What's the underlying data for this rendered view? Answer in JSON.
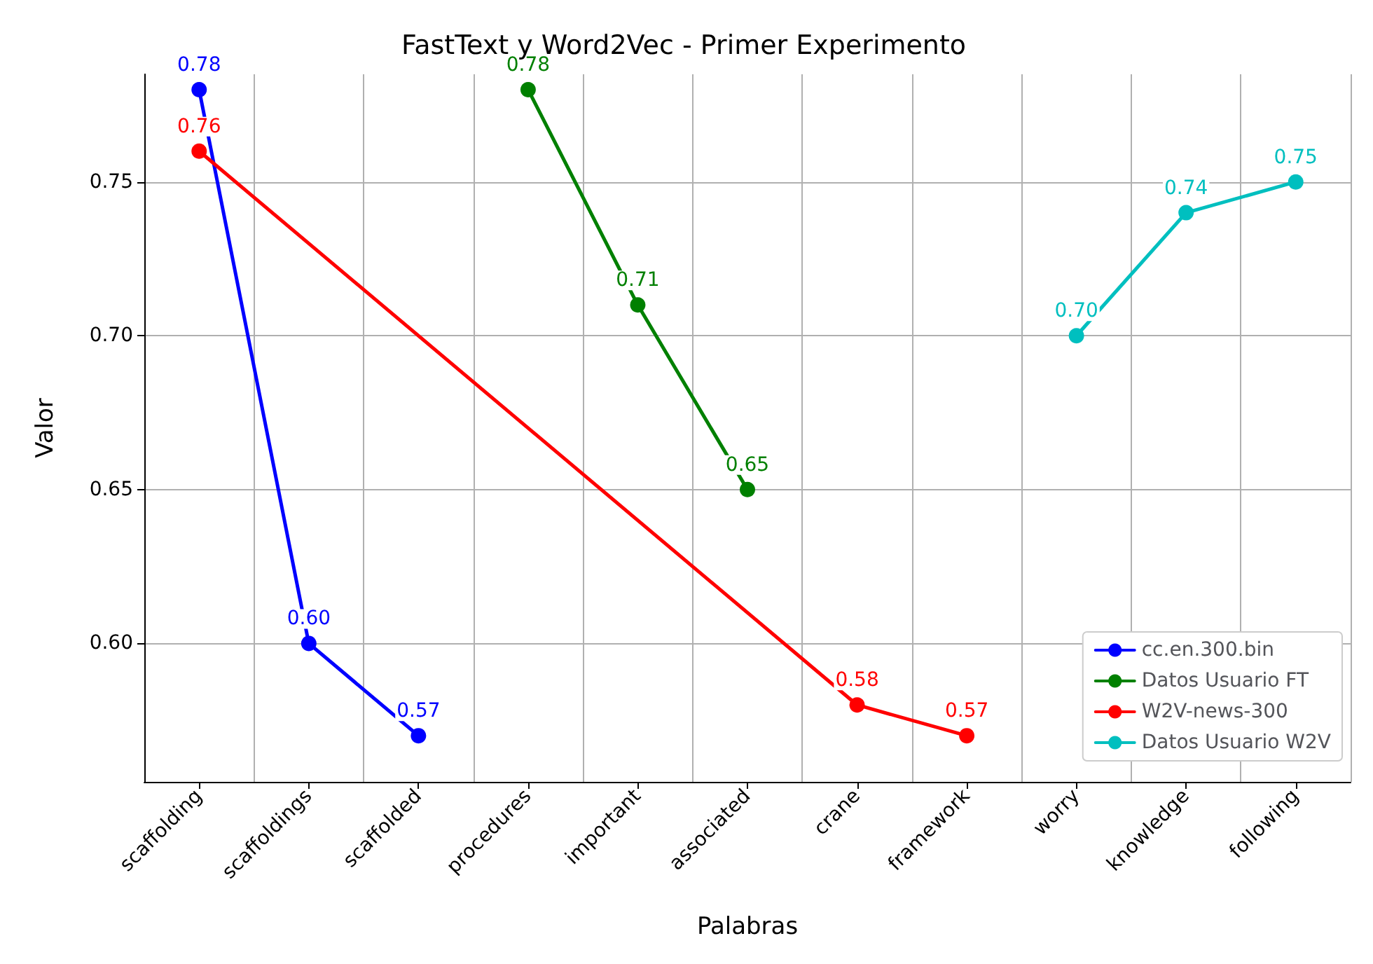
{
  "chart_data": {
    "type": "line",
    "title": "FastText y Word2Vec - Primer Experimento",
    "xlabel": "Palabras",
    "ylabel": "Valor",
    "categories": [
      "scaffolding",
      "scaffoldings",
      "scaffolded",
      "procedures",
      "important",
      "associated",
      "crane",
      "framework",
      "worry",
      "knowledge",
      "following"
    ],
    "series": [
      {
        "name": "cc.en.300.bin",
        "color": "#0000ff",
        "values": [
          0.78,
          0.6,
          0.57,
          null,
          null,
          null,
          null,
          null,
          null,
          null,
          null
        ],
        "value_labels": [
          "0.78",
          "0.60",
          "0.57",
          null,
          null,
          null,
          null,
          null,
          null,
          null,
          null
        ]
      },
      {
        "name": "Datos Usuario FT",
        "color": "#008000",
        "values": [
          null,
          null,
          null,
          0.78,
          0.71,
          0.65,
          null,
          null,
          null,
          null,
          null
        ],
        "value_labels": [
          null,
          null,
          null,
          "0.78",
          "0.71",
          "0.65",
          null,
          null,
          null,
          null,
          null
        ]
      },
      {
        "name": "W2V-news-300",
        "color": "#ff0000",
        "values": [
          0.76,
          null,
          null,
          null,
          null,
          null,
          0.58,
          0.57,
          null,
          null,
          null
        ],
        "value_labels": [
          "0.76",
          null,
          null,
          null,
          null,
          null,
          "0.58",
          "0.57",
          null,
          null,
          null
        ]
      },
      {
        "name": "Datos Usuario W2V",
        "color": "#00bfbf",
        "values": [
          null,
          null,
          null,
          null,
          null,
          null,
          null,
          null,
          0.7,
          0.74,
          0.75
        ],
        "value_labels": [
          null,
          null,
          null,
          null,
          null,
          null,
          null,
          null,
          "0.70",
          "0.74",
          "0.75"
        ]
      }
    ],
    "ylim": [
      0.555,
      0.785
    ],
    "yticks": [
      {
        "value": 0.6,
        "label": "0.60"
      },
      {
        "value": 0.65,
        "label": "0.65"
      },
      {
        "value": 0.7,
        "label": "0.70"
      },
      {
        "value": 0.75,
        "label": "0.75"
      }
    ],
    "grid": true,
    "legend": "bottom right",
    "marker": "circle",
    "line_style": "solid"
  }
}
